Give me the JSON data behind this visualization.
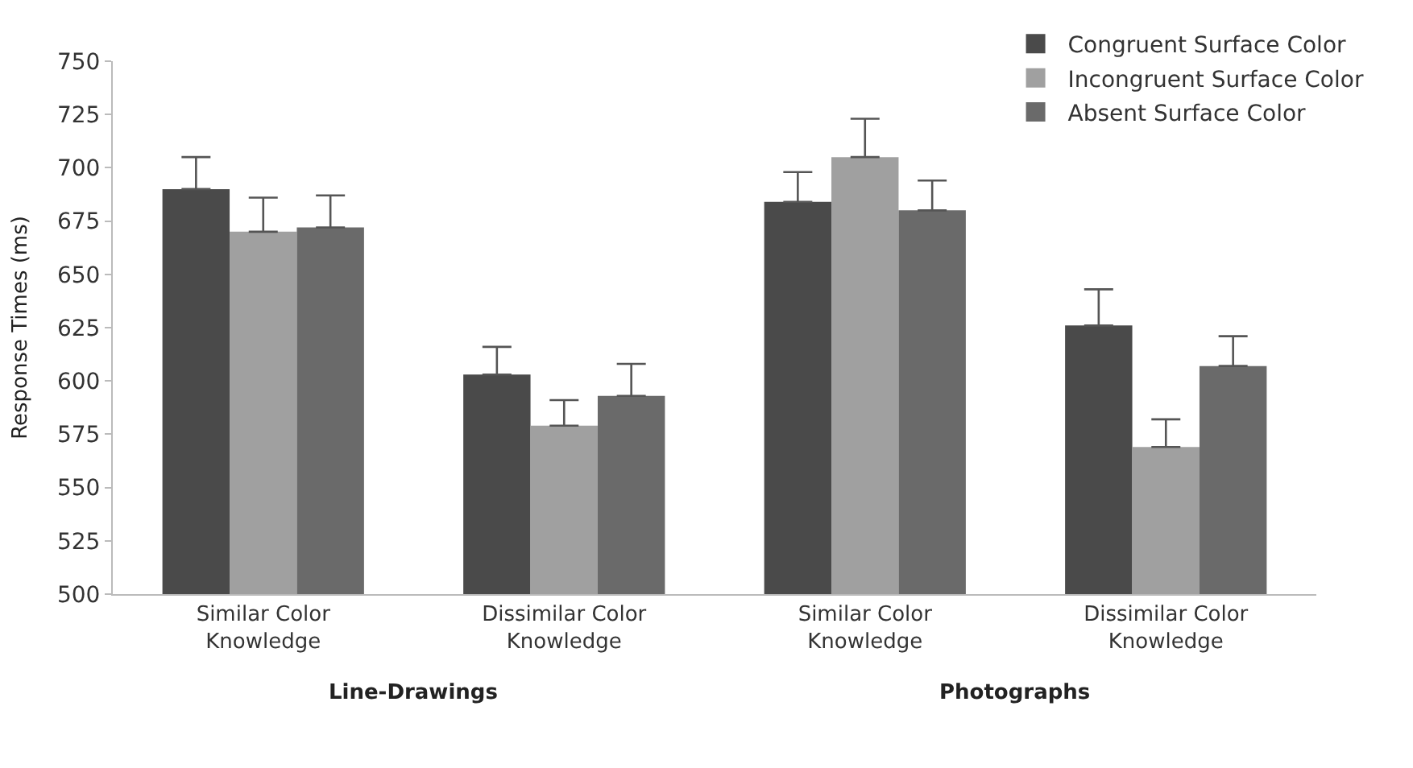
{
  "chart_data": {
    "type": "bar",
    "ylabel": "Response Times (ms)",
    "categories": [
      "Similar Color Knowledge",
      "Dissimilar Color Knowledge",
      "Similar Color Knowledge",
      "Dissimilar Color Knowledge"
    ],
    "series": [
      {
        "name": "Congruent Surface Color",
        "color": "#4a4a4a",
        "values": [
          690,
          603,
          684,
          626
        ],
        "errors": [
          [
            690,
            705
          ],
          [
            603,
            616
          ],
          [
            684,
            698
          ],
          [
            626,
            643
          ]
        ]
      },
      {
        "name": "Incongruent Surface Color",
        "color": "#a0a0a0",
        "values": [
          670,
          579,
          705,
          569
        ],
        "errors": [
          [
            670,
            686
          ],
          [
            579,
            591
          ],
          [
            705,
            723
          ],
          [
            569,
            582
          ]
        ]
      },
      {
        "name": "Absent Surface Color",
        "color": "#6a6a6a",
        "values": [
          672,
          593,
          680,
          607
        ],
        "errors": [
          [
            672,
            687
          ],
          [
            593,
            608
          ],
          [
            680,
            694
          ],
          [
            607,
            621
          ]
        ]
      }
    ],
    "ylim": [
      500,
      750
    ],
    "yticks": [
      500,
      525,
      550,
      575,
      600,
      625,
      650,
      675,
      700,
      725,
      750
    ],
    "annotations": [
      "Line-Drawings",
      "Photographs"
    ],
    "legend": "top right"
  }
}
